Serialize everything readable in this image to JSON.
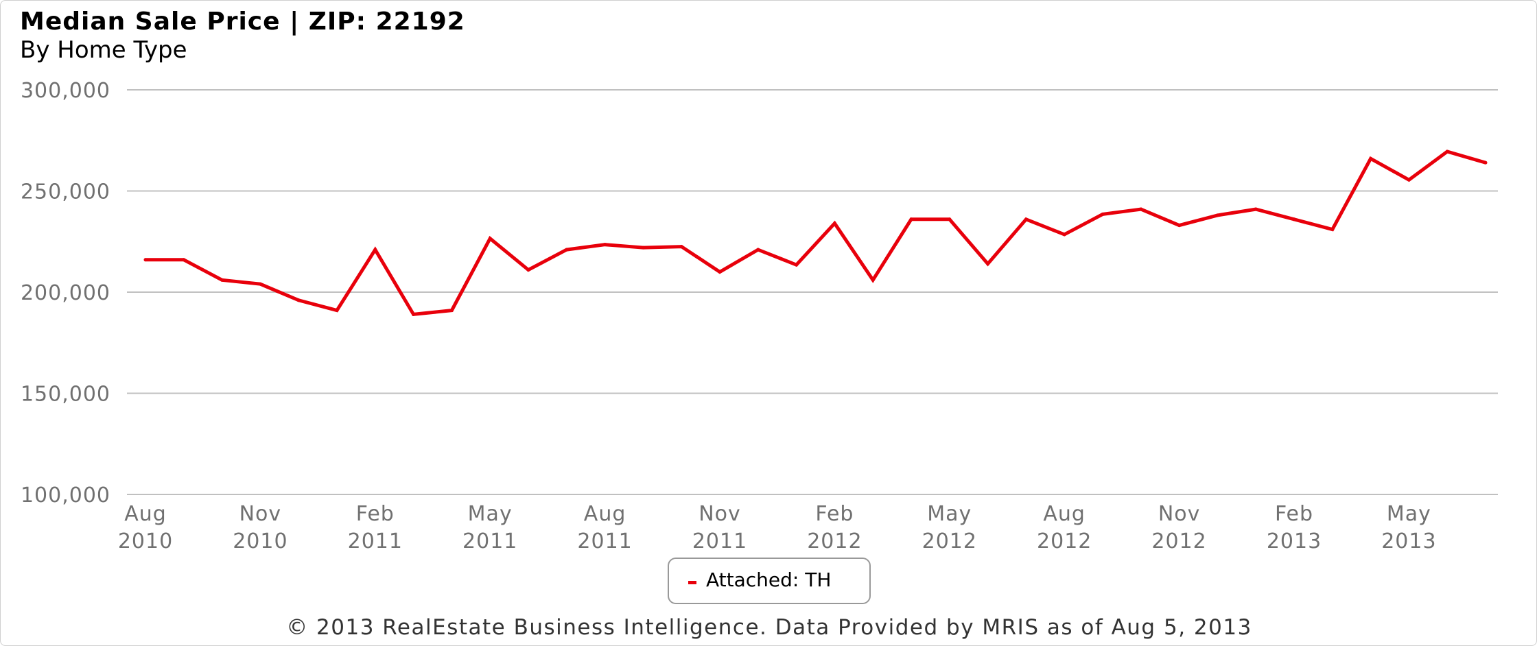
{
  "header": {
    "title": "Median Sale Price | ZIP: 22192",
    "subtitle": "By Home Type"
  },
  "footer": {
    "text": "© 2013 RealEstate Business Intelligence. Data Provided by MRIS as of Aug 5, 2013"
  },
  "colors": {
    "series": "#e8000b",
    "grid": "#c0c0c0",
    "tick_text": "#707070"
  },
  "chart_data": {
    "type": "line",
    "title": "Median Sale Price | ZIP: 22192",
    "subtitle": "By Home Type",
    "xlabel": "",
    "ylabel": "",
    "ylim": [
      100000,
      300000
    ],
    "yticks": [
      {
        "value": 300000,
        "label": "300,000"
      },
      {
        "value": 250000,
        "label": "250,000"
      },
      {
        "value": 200000,
        "label": "200,000"
      },
      {
        "value": 150000,
        "label": "150,000"
      },
      {
        "value": 100000,
        "label": "100,000"
      }
    ],
    "xticks": [
      {
        "month": "Aug",
        "year": "2010",
        "index": 0
      },
      {
        "month": "Nov",
        "year": "2010",
        "index": 3
      },
      {
        "month": "Feb",
        "year": "2011",
        "index": 6
      },
      {
        "month": "May",
        "year": "2011",
        "index": 9
      },
      {
        "month": "Aug",
        "year": "2011",
        "index": 12
      },
      {
        "month": "Nov",
        "year": "2011",
        "index": 15
      },
      {
        "month": "Feb",
        "year": "2012",
        "index": 18
      },
      {
        "month": "May",
        "year": "2012",
        "index": 21
      },
      {
        "month": "Aug",
        "year": "2012",
        "index": 24
      },
      {
        "month": "Nov",
        "year": "2012",
        "index": 27
      },
      {
        "month": "Feb",
        "year": "2013",
        "index": 30
      },
      {
        "month": "May",
        "year": "2013",
        "index": 33
      }
    ],
    "grid": true,
    "legend_position": "bottom-center",
    "x": [
      "2010-08",
      "2010-09",
      "2010-10",
      "2010-11",
      "2010-12",
      "2011-01",
      "2011-02",
      "2011-03",
      "2011-04",
      "2011-05",
      "2011-06",
      "2011-07",
      "2011-08",
      "2011-09",
      "2011-10",
      "2011-11",
      "2011-12",
      "2012-01",
      "2012-02",
      "2012-03",
      "2012-04",
      "2012-05",
      "2012-06",
      "2012-07",
      "2012-08",
      "2012-09",
      "2012-10",
      "2012-11",
      "2012-12",
      "2013-01",
      "2013-02",
      "2013-03",
      "2013-04",
      "2013-05",
      "2013-06",
      "2013-07"
    ],
    "series": [
      {
        "name": "Attached: TH",
        "color": "#e8000b",
        "values": [
          216000,
          216000,
          206000,
          204000,
          196000,
          191000,
          221000,
          189000,
          191000,
          226500,
          211000,
          221000,
          223500,
          222000,
          222500,
          210000,
          221000,
          213500,
          234000,
          206000,
          236000,
          236000,
          214000,
          236000,
          228500,
          238500,
          241000,
          233000,
          238000,
          241000,
          236000,
          231000,
          266000,
          255500,
          269500,
          264000
        ]
      }
    ]
  }
}
